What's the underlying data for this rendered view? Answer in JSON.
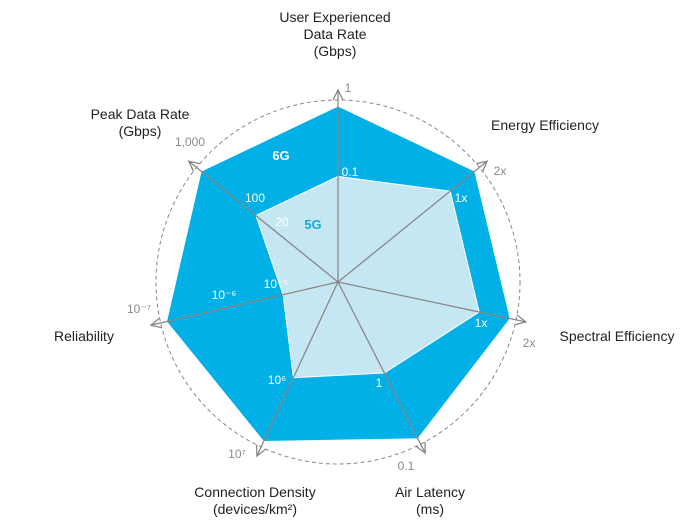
{
  "chart_data": {
    "type": "radar",
    "axes": [
      {
        "label_lines": [
          "User Experienced",
          "Data Rate",
          "(Gbps)"
        ],
        "units": "Gbps",
        "outer_tick": "1",
        "inner_tick": "0.1",
        "mid_tick": ""
      },
      {
        "label_lines": [
          "Energy Efficiency"
        ],
        "units": "",
        "outer_tick": "2x",
        "inner_tick": "1x",
        "mid_tick": ""
      },
      {
        "label_lines": [
          "Spectral Efficiency"
        ],
        "units": "",
        "outer_tick": "2x",
        "inner_tick": "1x",
        "mid_tick": ""
      },
      {
        "label_lines": [
          "Air Latency",
          "(ms)"
        ],
        "units": "ms",
        "outer_tick": "0.1",
        "inner_tick": "1",
        "mid_tick": ""
      },
      {
        "label_lines": [
          "Connection Density",
          "(devices/km²)"
        ],
        "units": "devices/km²",
        "outer_tick": "10⁷",
        "inner_tick": "10⁶",
        "mid_tick": ""
      },
      {
        "label_lines": [
          "Reliability"
        ],
        "units": "",
        "outer_tick": "10⁻⁷",
        "inner_tick": "10⁻⁵",
        "mid_tick": "10⁻⁶"
      },
      {
        "label_lines": [
          "Peak Data Rate",
          "(Gbps)"
        ],
        "units": "Gbps",
        "outer_tick": "1,000",
        "inner_tick": "20",
        "mid_tick": "100"
      }
    ],
    "series": [
      {
        "name": "6G",
        "color": "#00b0e6",
        "values": [
          1,
          2,
          2,
          0.1,
          10000000,
          1e-07,
          1000
        ],
        "relative": [
          1.0,
          1.0,
          1.0,
          1.0,
          1.0,
          1.0,
          1.0
        ]
      },
      {
        "name": "5G",
        "color": "#c5e7f3",
        "values": [
          0.1,
          1,
          1,
          1,
          1000000,
          1e-05,
          20
        ],
        "relative": [
          0.6,
          0.82,
          0.82,
          0.58,
          0.6,
          0.32,
          0.6
        ]
      }
    ],
    "grid": "dashed circles",
    "legend": "inline labels"
  },
  "colors": {
    "six_g": "#00b0e6",
    "five_g": "#c5e7f3",
    "axis_line": "#888888",
    "tick_text": "#8a8a8a",
    "dashed_grid": "#888888",
    "five_g_label": "#1aa7d9"
  }
}
